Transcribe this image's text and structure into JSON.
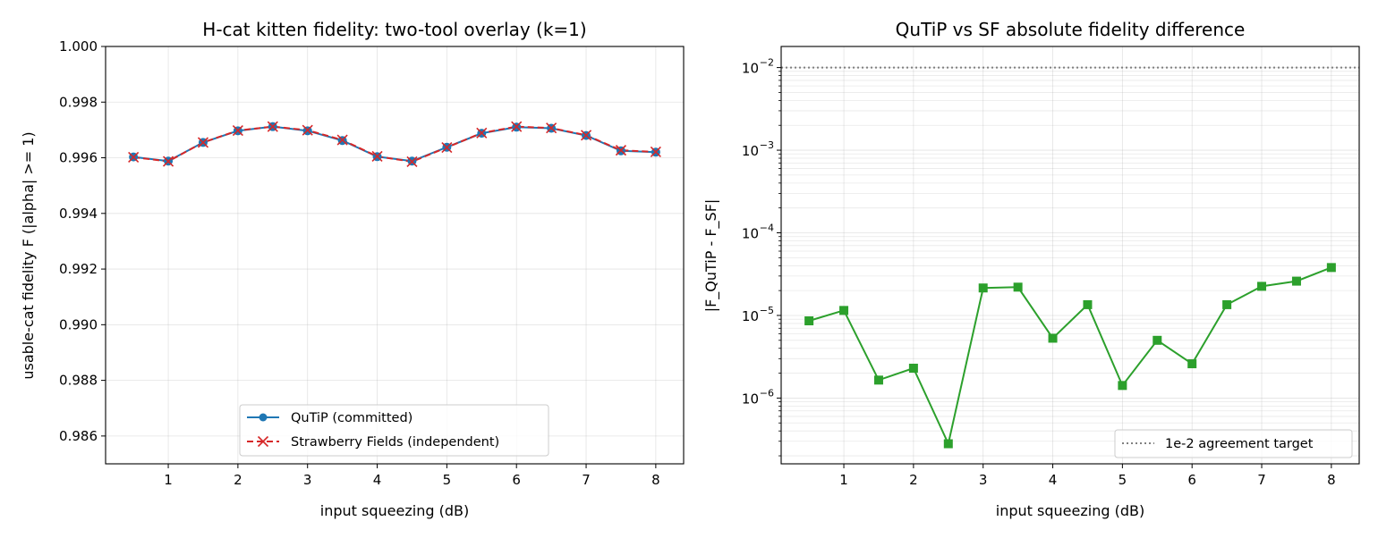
{
  "chart_data": [
    {
      "type": "line",
      "title": "H-cat kitten fidelity: two-tool overlay (k=1)",
      "xlabel": "input squeezing (dB)",
      "ylabel": "usable-cat fidelity  F (|alpha| >= 1)",
      "xlim": [
        0.1,
        8.4
      ],
      "ylim": [
        0.985,
        1.0
      ],
      "xticks": [
        1,
        2,
        3,
        4,
        5,
        6,
        7,
        8
      ],
      "yticks": [
        0.986,
        0.988,
        0.99,
        0.992,
        0.994,
        0.996,
        0.998,
        1.0
      ],
      "ytick_labels": [
        "0.986",
        "0.988",
        "0.990",
        "0.992",
        "0.994",
        "0.996",
        "0.998",
        "1.000"
      ],
      "grid": true,
      "legend_position": "lower-center",
      "x": [
        0.5,
        1.0,
        1.5,
        2.0,
        2.5,
        3.0,
        3.5,
        4.0,
        4.5,
        5.0,
        5.5,
        6.0,
        6.5,
        7.0,
        7.5,
        8.0
      ],
      "series": [
        {
          "name": "QuTiP (committed)",
          "color": "#1f77b4",
          "marker": "circle",
          "linestyle": "solid",
          "values": [
            0.99603,
            0.99588,
            0.99655,
            0.99697,
            0.99712,
            0.99697,
            0.99662,
            0.99604,
            0.99588,
            0.99638,
            0.99688,
            0.9971,
            0.99706,
            0.9968,
            0.99625,
            0.9962
          ]
        },
        {
          "name": "Strawberry Fields (independent)",
          "color": "#d62728",
          "marker": "x",
          "linestyle": "dashed",
          "values": [
            0.99602,
            0.99587,
            0.99655,
            0.99698,
            0.99712,
            0.99699,
            0.99664,
            0.99605,
            0.99586,
            0.99637,
            0.99689,
            0.99712,
            0.99707,
            0.99681,
            0.99627,
            0.99621
          ]
        }
      ]
    },
    {
      "type": "line",
      "title": "QuTiP vs SF absolute fidelity difference",
      "xlabel": "input squeezing (dB)",
      "ylabel": "|F_QuTiP - F_SF|",
      "yscale": "log",
      "xlim": [
        0.1,
        8.4
      ],
      "ylim": [
        1.6e-07,
        0.018
      ],
      "xticks": [
        1,
        2,
        3,
        4,
        5,
        6,
        7,
        8
      ],
      "yticks": [
        1e-06,
        1e-05,
        0.0001,
        0.001,
        0.01
      ],
      "ytick_labels": [
        {
          "base": "10",
          "exp": "−6"
        },
        {
          "base": "10",
          "exp": "−5"
        },
        {
          "base": "10",
          "exp": "−4"
        },
        {
          "base": "10",
          "exp": "−3"
        },
        {
          "base": "10",
          "exp": "−2"
        }
      ],
      "grid": true,
      "legend_position": "lower-right",
      "x": [
        0.5,
        1.0,
        1.5,
        2.0,
        2.5,
        3.0,
        3.5,
        4.0,
        4.5,
        5.0,
        5.5,
        6.0,
        6.5,
        7.0,
        7.5,
        8.0
      ],
      "series": [
        {
          "name": "",
          "color": "#2ca02c",
          "marker": "square",
          "linestyle": "solid",
          "values": [
            8.6e-06,
            1.15e-05,
            1.65e-06,
            2.3e-06,
            2.8e-07,
            2.15e-05,
            2.2e-05,
            5.3e-06,
            1.35e-05,
            1.42e-06,
            5e-06,
            2.6e-06,
            1.35e-05,
            2.25e-05,
            2.6e-05,
            3.8e-05
          ]
        }
      ],
      "reference_line": {
        "name": "1e-2 agreement target",
        "value": 0.01,
        "color": "#808080",
        "linestyle": "dotted"
      }
    }
  ]
}
